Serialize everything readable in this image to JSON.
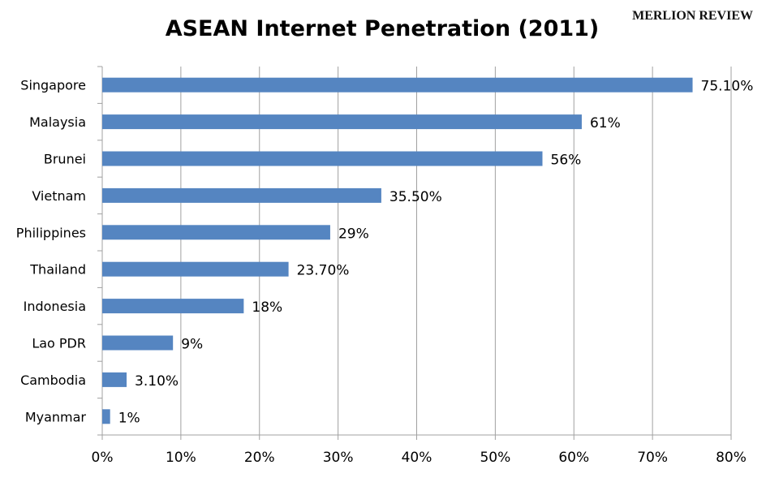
{
  "watermark": "MERLION REVIEW",
  "chart_data": {
    "type": "bar",
    "orientation": "horizontal",
    "title": "ASEAN Internet Penetration (2011)",
    "categories": [
      "Singapore",
      "Malaysia",
      "Brunei",
      "Vietnam",
      "Philippines",
      "Thailand",
      "Indonesia",
      "Lao PDR",
      "Cambodia",
      "Myanmar"
    ],
    "values": [
      75.1,
      61,
      56,
      35.5,
      29,
      23.7,
      18,
      9,
      3.1,
      1
    ],
    "data_labels": [
      "75.10%",
      "61%",
      "56%",
      "35.50%",
      "29%",
      "23.70%",
      "18%",
      "9%",
      "3.10%",
      "1%"
    ],
    "xlim": [
      0,
      80
    ],
    "xticks": [
      "0%",
      "10%",
      "20%",
      "30%",
      "40%",
      "50%",
      "60%",
      "70%",
      "80%"
    ],
    "grid": "vertical",
    "bar_color": "#5585C1",
    "grid_color": "#A0A0A0"
  }
}
